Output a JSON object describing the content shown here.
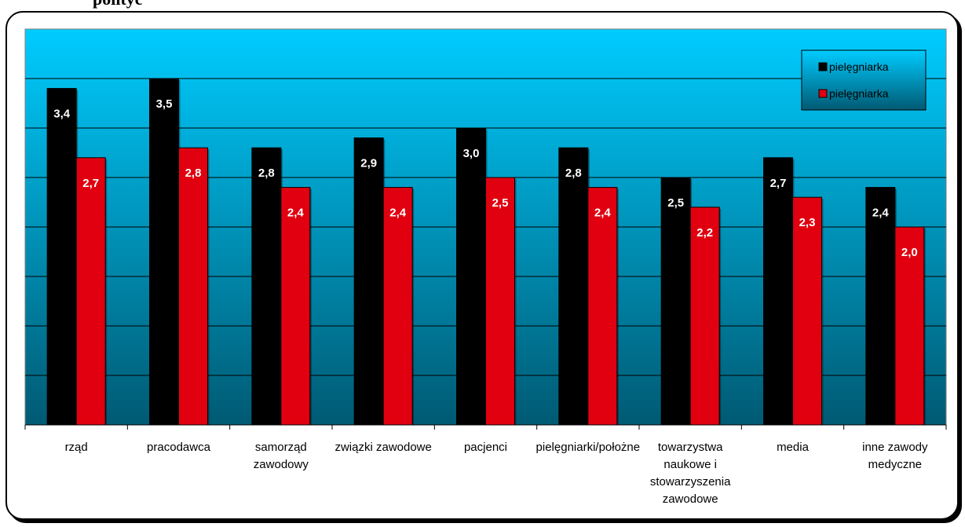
{
  "top_caption": "polityc",
  "colors": {
    "series1": "#000000",
    "series2": "#e0000f",
    "plot_top": "#00ccff",
    "plot_bottom": "#005a73"
  },
  "chart_data": {
    "type": "bar",
    "categories": [
      "rząd",
      "pracodawca",
      "samorząd zawodowy",
      "związki zawodowe",
      "pacjenci",
      "pielęgniarki/położne",
      "towarzystwa naukowe i stowarzyszenia zawodowe",
      "media",
      "inne zawody medyczne"
    ],
    "category_lines": [
      [
        "rząd"
      ],
      [
        "pracodawca"
      ],
      [
        "samorząd",
        "zawodowy"
      ],
      [
        "związki zawodowe"
      ],
      [
        "pacjenci"
      ],
      [
        "pielęgniarki/położne"
      ],
      [
        "towarzystwa",
        "naukowe i",
        "stowarzyszenia",
        "zawodowe"
      ],
      [
        "media"
      ],
      [
        "inne zawody",
        "medyczne"
      ]
    ],
    "series": [
      {
        "name": "pielęgniarka",
        "values": [
          3.4,
          3.5,
          2.8,
          2.9,
          3.0,
          2.8,
          2.5,
          2.7,
          2.4
        ],
        "labels": [
          "3,4",
          "3,5",
          "2,8",
          "2,9",
          "3,0",
          "2,8",
          "2,5",
          "2,7",
          "2,4"
        ]
      },
      {
        "name": "pielęgniarka",
        "values": [
          2.7,
          2.8,
          2.4,
          2.4,
          2.5,
          2.4,
          2.2,
          2.3,
          2.0
        ],
        "labels": [
          "2,7",
          "2,8",
          "2,4",
          "2,4",
          "2,5",
          "2,4",
          "2,2",
          "2,3",
          "2,0"
        ]
      }
    ],
    "ylim": [
      0,
      4
    ],
    "grid": true,
    "legend_position": "top-right",
    "title": "",
    "xlabel": "",
    "ylabel": ""
  }
}
